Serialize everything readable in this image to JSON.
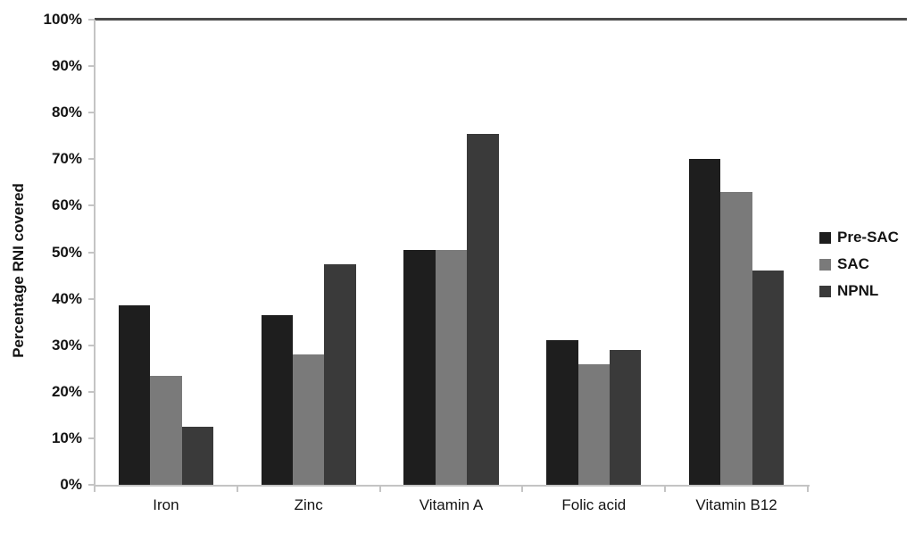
{
  "chart_data": {
    "type": "bar",
    "title": "",
    "xlabel": "",
    "ylabel": "Percentage RNI covered",
    "categories": [
      "Iron",
      "Zinc",
      "Vitamin A",
      "Folic acid",
      "Vitamin B12"
    ],
    "series": [
      {
        "name": "Pre-SAC",
        "color": "#1e1e1e",
        "values": [
          38.5,
          36.5,
          50.5,
          31,
          70
        ]
      },
      {
        "name": "SAC",
        "color": "#7a7a7a",
        "values": [
          23.5,
          28,
          50.5,
          26,
          63
        ]
      },
      {
        "name": "NPNL",
        "color": "#3a3a3a",
        "values": [
          12.5,
          47.5,
          75.5,
          29,
          46
        ]
      }
    ],
    "ylim": [
      0,
      100
    ],
    "ytick_step": 10,
    "ytick_labels": [
      "0%",
      "10%",
      "20%",
      "30%",
      "40%",
      "50%",
      "60%",
      "70%",
      "80%",
      "90%",
      "100%"
    ],
    "grid": "off",
    "legend_position": "right",
    "reference_line": {
      "value": 100,
      "color": "#4a4a4a"
    }
  },
  "colors": {
    "axis": "#c4c4c4",
    "text": "#141414",
    "background": "#ffffff"
  }
}
